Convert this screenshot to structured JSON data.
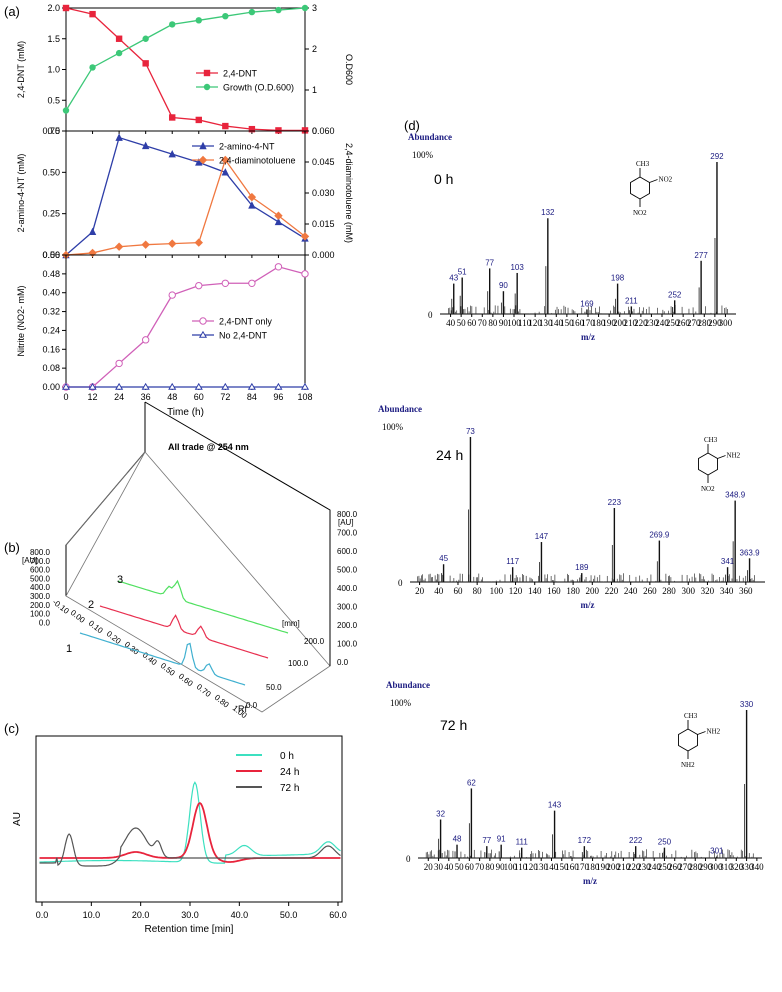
{
  "panel_labels": {
    "a": "(a)",
    "b": "(b)",
    "c": "(c)",
    "d": "(d)"
  },
  "chart_data": [
    {
      "id": "a1",
      "type": "line",
      "ylabel": "2,4-DNT (mM)",
      "y2label": "O.D600",
      "ylim": [
        0,
        2.0
      ],
      "y2lim": [
        0,
        3
      ],
      "yticks": [
        "0.0",
        "0.5",
        "1.0",
        "1.5",
        "2.0"
      ],
      "y2ticks": [
        "0",
        "1",
        "2",
        "3"
      ],
      "x": [
        0,
        12,
        24,
        36,
        48,
        60,
        72,
        84,
        96,
        108
      ],
      "series": [
        {
          "name": "2,4-DNT",
          "color": "#e8243c",
          "marker": "square",
          "axis": "left",
          "values": [
            2.0,
            1.9,
            1.5,
            1.1,
            0.22,
            0.18,
            0.08,
            0.03,
            0.01,
            0.01
          ]
        },
        {
          "name": "Growth (O.D.600)",
          "color": "#3cc878",
          "marker": "circle",
          "axis": "right",
          "values": [
            0.5,
            1.55,
            1.9,
            2.25,
            2.6,
            2.7,
            2.8,
            2.9,
            2.95,
            3.0
          ]
        }
      ]
    },
    {
      "id": "a2",
      "type": "line",
      "ylabel": "2-amino-4-NT (mM)",
      "y2label": "2,4-diaminotoluene (mM)",
      "ylim": [
        0,
        0.75
      ],
      "y2lim": [
        0,
        0.06
      ],
      "yticks": [
        "0.00",
        "0.25",
        "0.50",
        "0.75"
      ],
      "y2ticks": [
        "0.000",
        "0.015",
        "0.030",
        "0.045",
        "0.060"
      ],
      "x": [
        0,
        12,
        24,
        36,
        48,
        60,
        72,
        84,
        96,
        108
      ],
      "series": [
        {
          "name": "2-amino-4-NT",
          "color": "#2e3ea8",
          "marker": "triangle",
          "axis": "left",
          "values": [
            0.0,
            0.14,
            0.71,
            0.66,
            0.61,
            0.56,
            0.5,
            0.3,
            0.2,
            0.1
          ]
        },
        {
          "name": "2,4-diaminotoluene",
          "color": "#f07840",
          "marker": "diamond",
          "axis": "right",
          "values": [
            0.0,
            0.001,
            0.004,
            0.005,
            0.0055,
            0.006,
            0.046,
            0.028,
            0.019,
            0.009
          ]
        }
      ]
    },
    {
      "id": "a3",
      "type": "line",
      "ylabel": "Nitrite (NO2- mM)",
      "xlabel": "Time (h)",
      "ylim": [
        0,
        0.56
      ],
      "yticks": [
        "0.00",
        "0.08",
        "0.16",
        "0.24",
        "0.32",
        "0.40",
        "0.48",
        "0.56"
      ],
      "x": [
        0,
        12,
        24,
        36,
        48,
        60,
        72,
        84,
        96,
        108
      ],
      "xticks": [
        "0",
        "12",
        "24",
        "36",
        "48",
        "60",
        "72",
        "84",
        "96",
        "108"
      ],
      "series": [
        {
          "name": "2,4-DNT only",
          "color": "#d060b8",
          "marker": "open-circle",
          "values": [
            0.0,
            0.0,
            0.1,
            0.2,
            0.39,
            0.43,
            0.44,
            0.44,
            0.51,
            0.48
          ]
        },
        {
          "name": "No 2,4-DNT",
          "color": "#2e3ea8",
          "marker": "open-triangle",
          "values": [
            0,
            0,
            0,
            0,
            0,
            0,
            0,
            0,
            0,
            0
          ]
        }
      ]
    },
    {
      "id": "b",
      "type": "line",
      "title": "All trade @ 254 nm",
      "xlabel": "Rf",
      "au_label": "[AU]",
      "mm_label": "[mm]",
      "au_ticks": [
        "800.0",
        "700.0",
        "600.0",
        "500.0",
        "400.0",
        "300.0",
        "200.0",
        "100.0",
        "0.0"
      ],
      "rf_ticks": [
        "-0.10",
        "0.00",
        "0.10",
        "0.20",
        "0.30",
        "0.40",
        "0.50",
        "0.60",
        "0.70",
        "0.80",
        "1.00"
      ],
      "mm_ticks": [
        "200.0",
        "100.0",
        "50.0",
        "0.0"
      ],
      "tracks": [
        {
          "name": "1",
          "color": "#40b0d0"
        },
        {
          "name": "2",
          "color": "#e83050"
        },
        {
          "name": "3",
          "color": "#50e060"
        }
      ]
    },
    {
      "id": "c",
      "type": "line",
      "ylabel": "AU",
      "xlabel": "Retention time [min]",
      "xlim": [
        0,
        60
      ],
      "xticks": [
        "0.0",
        "10.0",
        "20.0",
        "30.0",
        "40.0",
        "50.0",
        "60.0"
      ],
      "series": [
        {
          "name": "0 h",
          "color": "#3ce0c0"
        },
        {
          "name": "24 h",
          "color": "#e8243c"
        },
        {
          "name": "72 h",
          "color": "#555555"
        }
      ]
    },
    {
      "id": "d1",
      "type": "bar",
      "title": "0 h",
      "ylabel": "Abundance",
      "y100": "100%",
      "xlabel": "m/z",
      "xlim": [
        30,
        310
      ],
      "xticks": [
        "40",
        "50",
        "60",
        "70",
        "80",
        "90",
        "100",
        "110",
        "120",
        "130",
        "140",
        "150",
        "160",
        "170",
        "180",
        "190",
        "200",
        "210",
        "220",
        "230",
        "240",
        "250",
        "260",
        "270",
        "280",
        "290",
        "300"
      ],
      "peaks": [
        [
          43,
          0.2
        ],
        [
          51,
          0.24
        ],
        [
          77,
          0.3
        ],
        [
          90,
          0.15
        ],
        [
          103,
          0.27
        ],
        [
          132,
          0.63
        ],
        [
          169,
          0.03
        ],
        [
          198,
          0.2
        ],
        [
          211,
          0.05
        ],
        [
          252,
          0.09
        ],
        [
          277,
          0.35
        ],
        [
          292,
          1.0
        ]
      ],
      "structure": {
        "top": "CH3",
        "sub1": "NO2",
        "sub2": "NO2"
      }
    },
    {
      "id": "d2",
      "type": "bar",
      "title": "24 h",
      "ylabel": "Abundance",
      "y100": "100%",
      "xlabel": "m/z",
      "xlim": [
        10,
        380
      ],
      "xticks": [
        "20",
        "40",
        "60",
        "80",
        "100",
        "120",
        "140",
        "160",
        "180",
        "200",
        "220",
        "240",
        "260",
        "280",
        "300",
        "320",
        "340",
        "360"
      ],
      "peaks": [
        [
          45.0,
          0.12
        ],
        [
          73.0,
          0.98
        ],
        [
          117.0,
          0.1
        ],
        [
          147.0,
          0.27
        ],
        [
          189.0,
          0.06
        ],
        [
          223.0,
          0.5
        ],
        [
          269.9,
          0.28
        ],
        [
          341,
          0.1
        ],
        [
          348.9,
          0.55
        ],
        [
          363.9,
          0.16
        ]
      ],
      "structure": {
        "top": "CH3",
        "sub1": "NH2",
        "sub2": "NO2"
      }
    },
    {
      "id": "d3",
      "type": "bar",
      "title": "72 h",
      "ylabel": "Abundance",
      "y100": "100%",
      "xlabel": "m/z",
      "xlim": [
        10,
        345
      ],
      "xticks": [
        "20",
        "30",
        "40",
        "50",
        "60",
        "70",
        "80",
        "90",
        "100",
        "110",
        "120",
        "130",
        "140",
        "150",
        "160",
        "170",
        "180",
        "190",
        "200",
        "210",
        "220",
        "230",
        "240",
        "250",
        "260",
        "270",
        "280",
        "290",
        "300",
        "310",
        "320",
        "330",
        "340"
      ],
      "peaks": [
        [
          32,
          0.26
        ],
        [
          48,
          0.09
        ],
        [
          62,
          0.47
        ],
        [
          77,
          0.08
        ],
        [
          91,
          0.09
        ],
        [
          111,
          0.07
        ],
        [
          143,
          0.32
        ],
        [
          172,
          0.08
        ],
        [
          222,
          0.08
        ],
        [
          250,
          0.07
        ],
        [
          301,
          0.01
        ],
        [
          330,
          1.0
        ]
      ],
      "structure": {
        "top": "CH3",
        "sub1": "NH2",
        "sub2": "NH2"
      }
    }
  ]
}
